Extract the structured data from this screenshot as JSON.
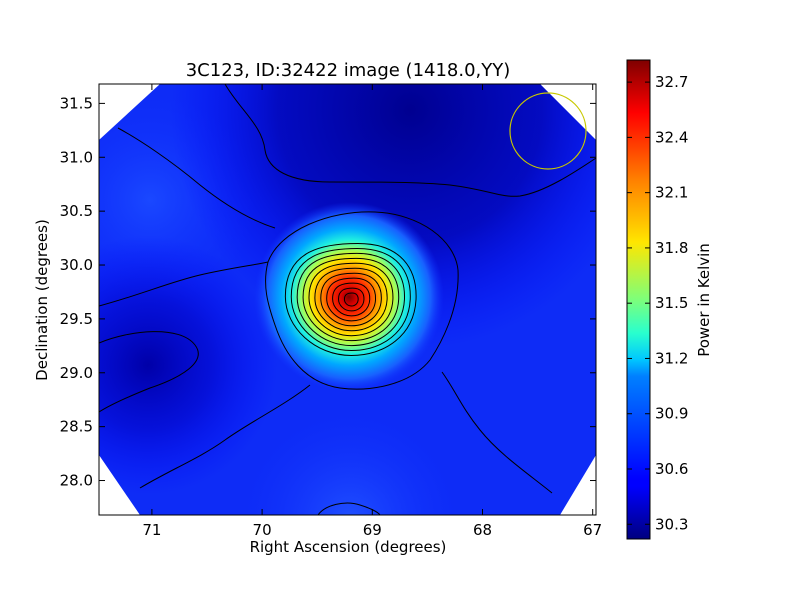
{
  "chart_data": {
    "type": "heatmap",
    "title": "3C123, ID:32422 image (1418.0,YY)",
    "xlabel": "Right Ascension (degrees)",
    "ylabel": "Declination (degrees)",
    "xlim": [
      71.48,
      66.97
    ],
    "ylim": [
      27.68,
      31.68
    ],
    "x_ticks": [
      "71",
      "70",
      "69",
      "68",
      "67"
    ],
    "y_ticks": [
      "28.0",
      "28.5",
      "29.0",
      "29.5",
      "30.0",
      "30.5",
      "31.0",
      "31.5"
    ],
    "colorbar": {
      "label": "Power in Kelvin",
      "range": [
        30.22,
        32.82
      ],
      "ticks": [
        "30.3",
        "30.6",
        "30.9",
        "31.2",
        "31.5",
        "31.8",
        "32.1",
        "32.4",
        "32.7"
      ],
      "colormap": "jet"
    },
    "peak": {
      "ra": 69.19,
      "dec": 29.68,
      "value": 32.8
    },
    "secondary_peak": {
      "ra": 69.12,
      "dec": 27.75,
      "value": 30.75
    },
    "background_level": 30.55,
    "minima": [
      {
        "ra": 70.95,
        "dec": 29.05,
        "value": 30.32
      },
      {
        "ra": 68.8,
        "dec": 31.45,
        "value": 30.28
      }
    ],
    "contour_levels": [
      30.45,
      30.7,
      30.9,
      31.1,
      31.3,
      31.5,
      31.7,
      31.9,
      32.1,
      32.3,
      32.5,
      32.7
    ],
    "beam_circle": {
      "ra": 67.38,
      "dec": 31.23,
      "color": "#c8c800"
    }
  }
}
